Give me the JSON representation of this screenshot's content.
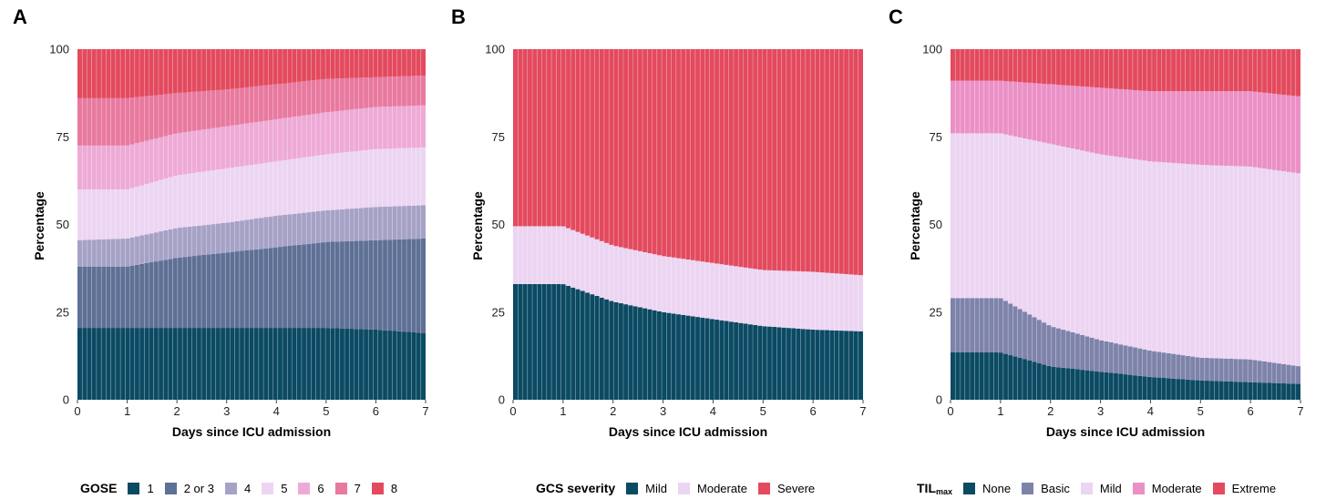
{
  "chart_data": [
    {
      "type": "stacked-bar",
      "panel_label": "A",
      "xlabel": "Days since ICU admission",
      "ylabel": "Percentage",
      "xlim": [
        0,
        7
      ],
      "ylim": [
        0,
        100
      ],
      "xticks": [
        "0",
        "1",
        "2",
        "3",
        "4",
        "5",
        "6",
        "7"
      ],
      "yticks": [
        "0",
        "25",
        "50",
        "75",
        "100"
      ],
      "legend": {
        "title": "GOSE",
        "title_sub": "",
        "position": "bottom"
      },
      "x": [
        0,
        1,
        2,
        3,
        4,
        5,
        6,
        7
      ],
      "series": [
        {
          "name": "1",
          "color": "#0b4a63",
          "values": [
            20.5,
            20.5,
            20.5,
            20.5,
            20.5,
            20.5,
            20.0,
            19.0
          ]
        },
        {
          "name": "2 or 3",
          "color": "#5e7095",
          "values": [
            17.5,
            17.5,
            20.0,
            21.5,
            23.0,
            24.5,
            25.5,
            27.0
          ]
        },
        {
          "name": "4",
          "color": "#a6a2c6",
          "values": [
            7.5,
            8.0,
            8.5,
            8.5,
            9.0,
            9.0,
            9.5,
            9.5
          ]
        },
        {
          "name": "5",
          "color": "#ecd5f2",
          "values": [
            14.5,
            14.0,
            15.0,
            15.5,
            15.5,
            16.0,
            16.5,
            16.5
          ]
        },
        {
          "name": "6",
          "color": "#eeaad6",
          "values": [
            12.5,
            12.5,
            12.0,
            12.0,
            12.0,
            12.0,
            12.0,
            12.0
          ]
        },
        {
          "name": "7",
          "color": "#e8799f",
          "values": [
            13.5,
            13.5,
            11.5,
            10.5,
            10.0,
            9.5,
            8.5,
            8.5
          ]
        },
        {
          "name": "8",
          "color": "#e34a5e",
          "values": [
            14.0,
            14.0,
            12.5,
            11.5,
            10.0,
            8.5,
            8.0,
            7.5
          ]
        }
      ]
    },
    {
      "type": "stacked-bar",
      "panel_label": "B",
      "xlabel": "Days since ICU admission",
      "ylabel": "Percentage",
      "xlim": [
        0,
        7
      ],
      "ylim": [
        0,
        100
      ],
      "xticks": [
        "0",
        "1",
        "2",
        "3",
        "4",
        "5",
        "6",
        "7"
      ],
      "yticks": [
        "0",
        "25",
        "50",
        "75",
        "100"
      ],
      "legend": {
        "title": "GCS severity",
        "title_sub": "",
        "position": "bottom"
      },
      "x": [
        0,
        1,
        2,
        3,
        4,
        5,
        6,
        7
      ],
      "series": [
        {
          "name": "Mild",
          "color": "#0b4a63",
          "values": [
            33.0,
            33.0,
            28.0,
            25.0,
            23.0,
            21.0,
            20.0,
            19.5
          ]
        },
        {
          "name": "Moderate",
          "color": "#ecd5f2",
          "values": [
            16.5,
            16.5,
            16.0,
            16.0,
            16.0,
            16.0,
            16.5,
            16.0
          ]
        },
        {
          "name": "Severe",
          "color": "#e34a5e",
          "values": [
            50.5,
            50.5,
            56.0,
            59.0,
            61.0,
            63.0,
            63.5,
            64.5
          ]
        }
      ]
    },
    {
      "type": "stacked-bar",
      "panel_label": "C",
      "xlabel": "Days since ICU admission",
      "ylabel": "Percentage",
      "xlim": [
        0,
        7
      ],
      "ylim": [
        0,
        100
      ],
      "xticks": [
        "0",
        "1",
        "2",
        "3",
        "4",
        "5",
        "6",
        "7"
      ],
      "yticks": [
        "0",
        "25",
        "50",
        "75",
        "100"
      ],
      "legend": {
        "title": "TIL",
        "title_sub": "max",
        "position": "bottom"
      },
      "x": [
        0,
        1,
        2,
        3,
        4,
        5,
        6,
        7
      ],
      "series": [
        {
          "name": "None",
          "color": "#0b4a63",
          "values": [
            13.5,
            13.5,
            9.5,
            8.0,
            6.5,
            5.5,
            5.0,
            4.5
          ]
        },
        {
          "name": "Basic",
          "color": "#7e83aa",
          "values": [
            15.5,
            15.5,
            11.5,
            9.0,
            7.5,
            6.5,
            6.5,
            5.0
          ]
        },
        {
          "name": "Mild",
          "color": "#ecd5f2",
          "values": [
            47.0,
            47.0,
            52.0,
            53.0,
            54.0,
            55.0,
            55.0,
            55.0
          ]
        },
        {
          "name": "Moderate",
          "color": "#eb90c6",
          "values": [
            15.0,
            15.0,
            17.0,
            19.0,
            20.0,
            21.0,
            21.5,
            22.0
          ]
        },
        {
          "name": "Extreme",
          "color": "#e34a5e",
          "values": [
            9.0,
            9.0,
            10.0,
            11.0,
            12.0,
            12.0,
            12.0,
            13.5
          ]
        }
      ]
    }
  ]
}
